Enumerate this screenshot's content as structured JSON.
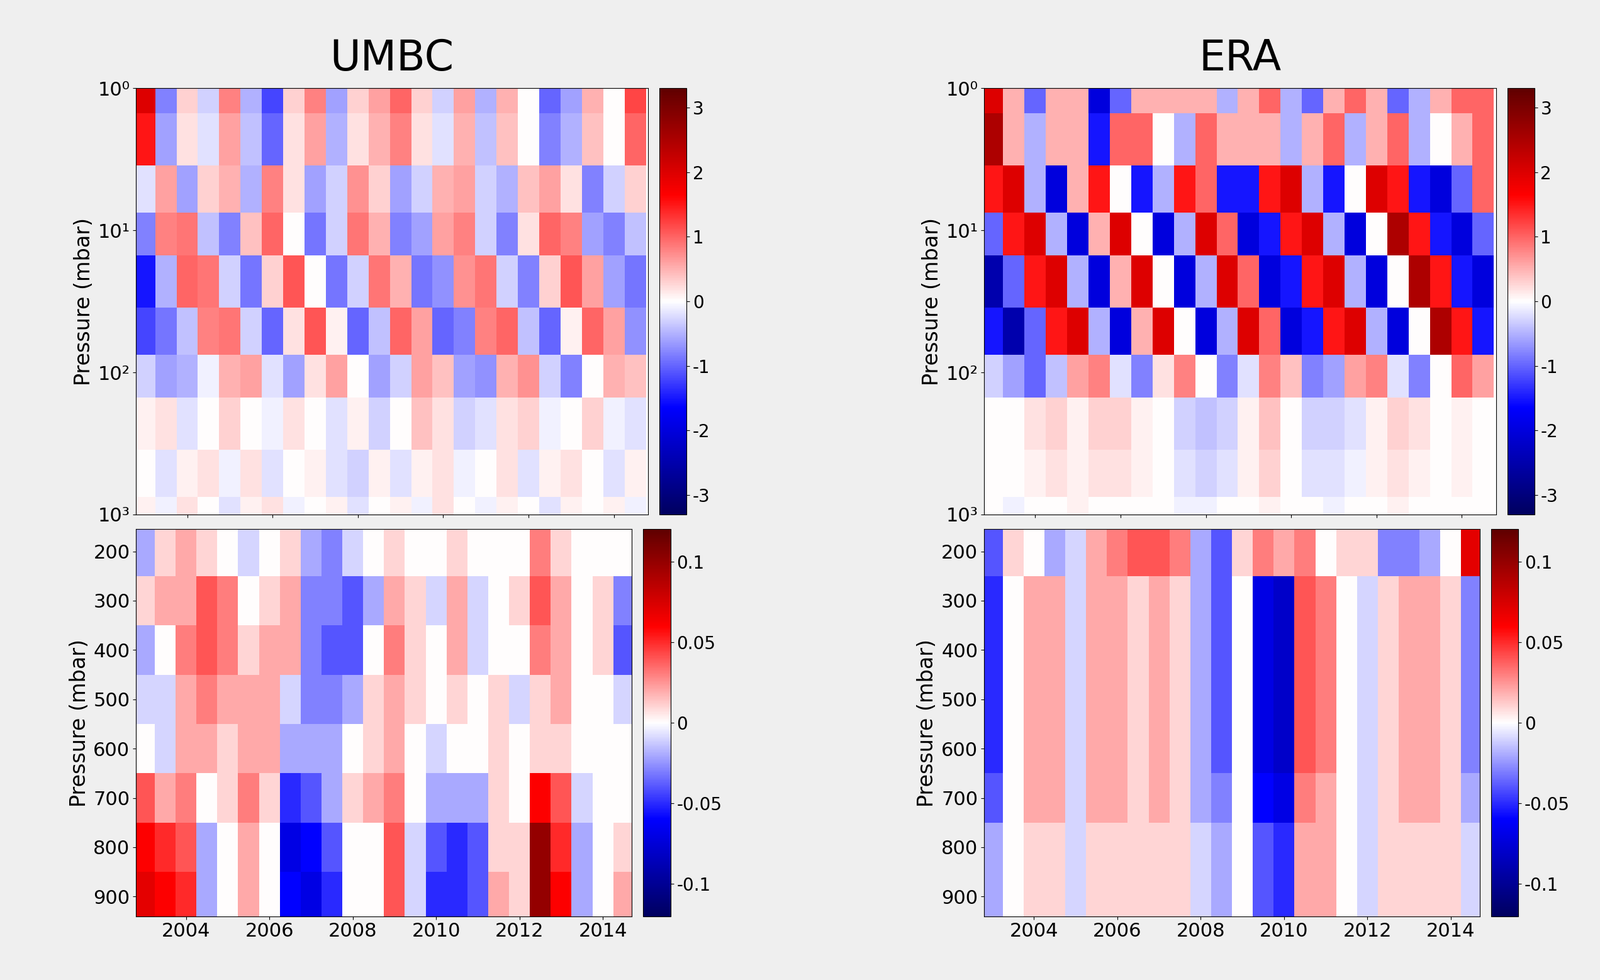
{
  "chart_data": [
    {
      "type": "heatmap",
      "title": "UMBC",
      "y_label": "Pressure (mbar)",
      "log": "y",
      "tick_labels": "y",
      "x": [
        2003.0,
        2003.5,
        2004.0,
        2004.5,
        2005.0,
        2005.5,
        2006.0,
        2006.5,
        2007.0,
        2007.5,
        2008.0,
        2008.5,
        2009.0,
        2009.5,
        2010.0,
        2010.5,
        2011.0,
        2011.5,
        2012.0,
        2012.5,
        2013.0,
        2013.5,
        2014.0,
        2014.5
      ],
      "y": [
        1,
        2,
        5,
        10,
        20,
        50,
        100,
        200,
        500,
        1000
      ],
      "z": [
        [
          2.0,
          -0.8,
          0.3,
          -0.3,
          0.8,
          -0.5,
          -1.2,
          0.3,
          0.8,
          -0.6,
          0.3,
          0.6,
          1.0,
          0.3,
          -0.3,
          0.6,
          -0.5,
          0.5,
          0.0,
          -1.0,
          -0.6,
          0.5,
          0.0,
          1.2
        ],
        [
          1.5,
          -0.6,
          0.2,
          -0.2,
          0.6,
          -0.4,
          -1.0,
          0.2,
          0.6,
          -0.5,
          0.2,
          0.5,
          0.8,
          0.2,
          -0.2,
          0.5,
          -0.4,
          0.4,
          0.0,
          -0.8,
          -0.5,
          0.4,
          0.0,
          1.0
        ],
        [
          -0.2,
          0.6,
          -0.6,
          0.3,
          0.5,
          -0.5,
          0.8,
          0.2,
          -0.6,
          -0.3,
          0.7,
          0.3,
          -0.6,
          -0.3,
          0.5,
          0.6,
          -0.3,
          -0.5,
          0.4,
          0.6,
          0.2,
          -0.8,
          -0.3,
          0.3
        ],
        [
          -0.8,
          0.8,
          0.9,
          -0.4,
          -0.8,
          0.4,
          1.0,
          0.0,
          -0.9,
          -0.3,
          0.9,
          0.5,
          -0.8,
          -0.6,
          0.6,
          0.8,
          -0.3,
          -0.8,
          0.2,
          1.0,
          0.8,
          -0.6,
          -0.8,
          -0.4
        ],
        [
          -1.5,
          -0.5,
          1.0,
          0.9,
          -0.3,
          -0.9,
          0.3,
          1.1,
          0.0,
          -0.9,
          -0.3,
          0.9,
          0.5,
          -0.9,
          -0.7,
          0.7,
          0.9,
          -0.3,
          -0.8,
          0.3,
          1.1,
          0.6,
          -0.6,
          -0.9
        ],
        [
          -1.2,
          -0.9,
          -0.4,
          0.8,
          0.9,
          -0.3,
          -1.0,
          0.2,
          1.1,
          0.1,
          -1.0,
          -0.4,
          1.0,
          0.6,
          -1.0,
          -0.8,
          0.8,
          1.0,
          -0.4,
          -1.0,
          0.1,
          1.0,
          0.6,
          -0.7
        ],
        [
          -0.3,
          -0.6,
          -0.5,
          -0.1,
          0.5,
          0.6,
          -0.2,
          -0.6,
          0.2,
          0.6,
          0.0,
          -0.6,
          -0.3,
          0.6,
          0.4,
          -0.6,
          -0.7,
          0.5,
          0.7,
          -0.3,
          -0.8,
          0.0,
          0.5,
          0.4
        ],
        [
          0.1,
          0.2,
          -0.2,
          0.0,
          0.3,
          0.0,
          -0.1,
          0.2,
          0.0,
          -0.2,
          0.1,
          -0.3,
          0.0,
          0.4,
          0.2,
          -0.3,
          -0.2,
          0.2,
          0.3,
          -0.1,
          0.0,
          0.3,
          -0.1,
          -0.2
        ],
        [
          0.0,
          -0.2,
          0.1,
          0.2,
          -0.1,
          0.2,
          -0.2,
          0.0,
          0.1,
          -0.2,
          -0.3,
          0.1,
          -0.2,
          0.1,
          0.2,
          -0.1,
          0.0,
          0.2,
          -0.2,
          0.1,
          0.2,
          0.0,
          -0.2,
          0.1
        ],
        [
          0.1,
          -0.1,
          0.2,
          0.0,
          -0.2,
          0.1,
          0.2,
          -0.1,
          0.0,
          0.1,
          -0.2,
          0.0,
          0.1,
          -0.1,
          0.2,
          0.0,
          -0.1,
          0.1,
          0.0,
          -0.2,
          0.1,
          0.0,
          0.1,
          -0.1
        ]
      ],
      "xlim": [
        2002.8,
        2014.8
      ],
      "xticks": [
        2004,
        2006,
        2008,
        2010,
        2012,
        2014
      ],
      "ylim": [
        1000,
        1
      ],
      "yticks": [
        {
          "value": 1,
          "label": "10⁰"
        },
        {
          "value": 10,
          "label": "10¹"
        },
        {
          "value": 100,
          "label": "10²"
        },
        {
          "value": 1000,
          "label": "10³"
        }
      ],
      "colorbar_range": [
        -3.3,
        3.3
      ],
      "colorbar_ticks": [
        -3,
        -2,
        -1,
        0,
        1,
        2,
        3
      ]
    },
    {
      "type": "heatmap",
      "title": "ERA",
      "y_label": "Pressure (mbar)",
      "log": "y",
      "tick_labels": "y",
      "x": [
        2003.0,
        2003.5,
        2004.0,
        2004.5,
        2005.0,
        2005.5,
        2006.0,
        2006.5,
        2007.0,
        2007.5,
        2008.0,
        2008.5,
        2009.0,
        2009.5,
        2010.0,
        2010.5,
        2011.0,
        2011.5,
        2012.0,
        2012.5,
        2013.0,
        2013.5,
        2014.0,
        2014.5
      ],
      "y": [
        1,
        2,
        5,
        10,
        20,
        50,
        100,
        200,
        500,
        1000
      ],
      "z": [
        [
          2.0,
          0.5,
          -1.0,
          0.5,
          0.5,
          -2.0,
          -1.0,
          0.5,
          0.5,
          0.5,
          0.5,
          -0.5,
          0.5,
          1.0,
          -0.5,
          -1.0,
          0.5,
          1.0,
          0.5,
          -1.0,
          -0.5,
          0.5,
          1.0,
          1.0
        ],
        [
          2.5,
          0.5,
          -0.5,
          0.5,
          0.5,
          -1.5,
          1.0,
          1.0,
          0.0,
          -0.5,
          1.0,
          0.5,
          0.5,
          0.5,
          -0.5,
          0.5,
          1.0,
          -0.5,
          0.5,
          1.0,
          -0.5,
          0.0,
          0.5,
          1.0
        ],
        [
          1.5,
          2.0,
          -0.5,
          -2.0,
          0.5,
          1.5,
          0.0,
          -1.5,
          -0.5,
          1.5,
          1.0,
          -1.5,
          -1.5,
          1.5,
          2.0,
          -0.5,
          -1.5,
          0.0,
          2.0,
          1.5,
          -1.5,
          -2.0,
          -1.0,
          1.0
        ],
        [
          -1.0,
          1.5,
          2.0,
          -0.5,
          -2.0,
          0.5,
          2.0,
          0.0,
          -2.0,
          -0.5,
          2.0,
          1.0,
          -2.0,
          -1.5,
          1.5,
          2.0,
          -0.5,
          -2.0,
          0.0,
          2.5,
          1.5,
          -1.5,
          -2.0,
          -1.0
        ],
        [
          -2.5,
          -1.0,
          1.5,
          2.0,
          -0.5,
          -2.0,
          0.5,
          2.0,
          0.0,
          -2.0,
          -0.5,
          2.0,
          1.0,
          -2.0,
          -1.5,
          1.5,
          2.0,
          -0.5,
          -2.0,
          0.0,
          2.5,
          1.5,
          -1.5,
          -2.0
        ],
        [
          -1.5,
          -2.5,
          -1.0,
          1.5,
          2.0,
          -0.5,
          -2.0,
          0.5,
          2.0,
          0.0,
          -2.0,
          -0.5,
          2.0,
          1.0,
          -2.0,
          -1.5,
          1.5,
          2.0,
          -0.5,
          -2.0,
          0.0,
          2.5,
          1.5,
          -1.5
        ],
        [
          -0.3,
          -0.6,
          -1.0,
          -0.4,
          0.6,
          0.8,
          -0.2,
          -0.8,
          0.2,
          0.8,
          0.0,
          -0.8,
          -0.2,
          0.8,
          0.4,
          -0.8,
          -0.6,
          0.6,
          0.8,
          -0.2,
          -0.8,
          0.0,
          1.0,
          0.6
        ],
        [
          0.0,
          0.0,
          0.2,
          0.3,
          0.1,
          0.3,
          0.3,
          0.1,
          0.0,
          -0.3,
          -0.4,
          -0.3,
          0.1,
          0.4,
          0.0,
          -0.3,
          -0.3,
          -0.2,
          0.1,
          0.3,
          0.2,
          0.0,
          0.1,
          0.0
        ],
        [
          0.0,
          0.0,
          0.1,
          0.2,
          0.1,
          0.2,
          0.2,
          0.1,
          0.0,
          -0.2,
          -0.3,
          -0.2,
          0.1,
          0.3,
          0.0,
          -0.2,
          -0.2,
          -0.1,
          0.1,
          0.2,
          0.1,
          0.0,
          0.1,
          0.0
        ],
        [
          0.0,
          -0.1,
          0.0,
          0.0,
          0.1,
          0.0,
          0.0,
          0.0,
          0.0,
          -0.1,
          -0.1,
          0.0,
          0.0,
          0.1,
          0.0,
          0.0,
          -0.1,
          0.0,
          0.0,
          0.1,
          0.0,
          0.0,
          0.0,
          0.0
        ]
      ],
      "xlim": [
        2002.8,
        2014.8
      ],
      "xticks": [
        2004,
        2006,
        2008,
        2010,
        2012,
        2014
      ],
      "ylim": [
        1000,
        1
      ],
      "yticks": [
        {
          "value": 1,
          "label": "10⁰"
        },
        {
          "value": 10,
          "label": "10¹"
        },
        {
          "value": 100,
          "label": "10²"
        },
        {
          "value": 1000,
          "label": "10³"
        }
      ],
      "colorbar_range": [
        -3.3,
        3.3
      ],
      "colorbar_ticks": [
        -3,
        -2,
        -1,
        0,
        1,
        2,
        3
      ]
    },
    {
      "type": "heatmap",
      "y_label": "Pressure (mbar)",
      "x": [
        2003.0,
        2003.5,
        2004.0,
        2004.5,
        2005.0,
        2005.5,
        2006.0,
        2006.5,
        2007.0,
        2007.5,
        2008.0,
        2008.5,
        2009.0,
        2009.5,
        2010.0,
        2010.5,
        2011.0,
        2011.5,
        2012.0,
        2012.5,
        2013.0,
        2013.5,
        2014.0,
        2014.5
      ],
      "y": [
        200,
        300,
        400,
        500,
        600,
        700,
        800,
        900
      ],
      "z": [
        [
          -0.02,
          0.01,
          0.02,
          0.01,
          0.0,
          -0.01,
          0.0,
          0.01,
          -0.02,
          -0.03,
          -0.01,
          0.0,
          0.01,
          0.0,
          0.0,
          0.01,
          0.0,
          0.0,
          0.0,
          0.03,
          0.01,
          0.0,
          0.0,
          0.0
        ],
        [
          0.01,
          0.02,
          0.02,
          0.04,
          0.03,
          0.0,
          0.01,
          0.02,
          -0.03,
          -0.03,
          -0.04,
          -0.02,
          0.02,
          0.01,
          -0.01,
          0.02,
          -0.01,
          0.0,
          0.01,
          0.04,
          0.02,
          0.0,
          0.01,
          -0.03
        ],
        [
          -0.02,
          0.0,
          0.03,
          0.04,
          0.03,
          0.01,
          0.02,
          0.02,
          -0.03,
          -0.04,
          -0.04,
          0.0,
          0.03,
          0.01,
          0.0,
          0.02,
          -0.01,
          0.0,
          0.0,
          0.03,
          0.02,
          0.0,
          0.01,
          -0.04
        ],
        [
          -0.01,
          -0.01,
          0.02,
          0.03,
          0.02,
          0.02,
          0.02,
          -0.01,
          -0.03,
          -0.03,
          -0.02,
          0.01,
          0.02,
          0.01,
          0.0,
          0.01,
          0.0,
          0.01,
          -0.01,
          0.01,
          0.02,
          0.0,
          0.0,
          -0.01
        ],
        [
          0.0,
          -0.01,
          0.02,
          0.02,
          0.01,
          0.02,
          0.02,
          -0.02,
          -0.02,
          -0.02,
          0.0,
          0.01,
          0.02,
          0.0,
          -0.01,
          0.0,
          0.0,
          0.01,
          0.0,
          0.01,
          0.01,
          0.0,
          0.0,
          0.0
        ],
        [
          0.04,
          0.02,
          0.03,
          0.0,
          0.01,
          0.03,
          0.01,
          -0.05,
          -0.04,
          -0.02,
          0.01,
          0.02,
          0.03,
          0.0,
          -0.02,
          -0.02,
          -0.02,
          0.01,
          0.0,
          0.06,
          0.04,
          -0.01,
          0.0,
          0.0
        ],
        [
          0.06,
          0.05,
          0.04,
          -0.02,
          0.0,
          0.02,
          0.0,
          -0.07,
          -0.06,
          -0.04,
          0.0,
          0.0,
          0.04,
          -0.01,
          -0.04,
          -0.05,
          -0.04,
          0.01,
          0.01,
          0.1,
          0.05,
          -0.02,
          0.0,
          0.01
        ],
        [
          0.07,
          0.06,
          0.05,
          -0.02,
          0.0,
          0.02,
          0.0,
          -0.06,
          -0.07,
          -0.05,
          0.0,
          0.0,
          0.04,
          -0.01,
          -0.05,
          -0.05,
          -0.04,
          0.02,
          0.01,
          0.1,
          0.06,
          -0.02,
          0.0,
          0.02
        ]
      ],
      "xlim": [
        2002.8,
        2014.7
      ],
      "xticks": [
        2004,
        2006,
        2008,
        2010,
        2012,
        2014
      ],
      "ylim": [
        940,
        155
      ],
      "yticks": [
        200,
        300,
        400,
        500,
        600,
        700,
        800,
        900
      ],
      "colorbar_range": [
        -0.12,
        0.12
      ],
      "colorbar_ticks": [
        -0.1,
        -0.05,
        0,
        0.05,
        0.1
      ]
    },
    {
      "type": "heatmap",
      "y_label": "Pressure (mbar)",
      "x": [
        2003.0,
        2003.5,
        2004.0,
        2004.5,
        2005.0,
        2005.5,
        2006.0,
        2006.5,
        2007.0,
        2007.5,
        2008.0,
        2008.5,
        2009.0,
        2009.5,
        2010.0,
        2010.5,
        2011.0,
        2011.5,
        2012.0,
        2012.5,
        2013.0,
        2013.5,
        2014.0,
        2014.5
      ],
      "y": [
        200,
        300,
        400,
        500,
        600,
        700,
        800,
        900
      ],
      "z": [
        [
          -0.04,
          0.01,
          0.0,
          -0.02,
          -0.01,
          0.02,
          0.03,
          0.04,
          0.04,
          0.03,
          -0.02,
          -0.04,
          0.01,
          0.03,
          0.02,
          0.03,
          0.0,
          0.01,
          0.01,
          -0.03,
          -0.03,
          -0.02,
          0.0,
          0.07
        ],
        [
          -0.05,
          0.0,
          0.02,
          0.02,
          -0.01,
          0.02,
          0.02,
          0.01,
          0.02,
          0.01,
          -0.02,
          -0.04,
          0.0,
          -0.07,
          -0.08,
          0.04,
          0.03,
          0.0,
          -0.01,
          0.01,
          0.02,
          0.02,
          0.01,
          -0.03
        ],
        [
          -0.05,
          0.0,
          0.02,
          0.02,
          -0.01,
          0.02,
          0.02,
          0.01,
          0.02,
          0.01,
          -0.02,
          -0.04,
          0.0,
          -0.07,
          -0.08,
          0.04,
          0.03,
          0.0,
          -0.01,
          0.01,
          0.02,
          0.02,
          0.01,
          -0.03
        ],
        [
          -0.05,
          0.0,
          0.02,
          0.02,
          -0.01,
          0.02,
          0.02,
          0.01,
          0.02,
          0.01,
          -0.02,
          -0.04,
          0.0,
          -0.07,
          -0.08,
          0.04,
          0.03,
          0.0,
          -0.01,
          0.01,
          0.02,
          0.02,
          0.01,
          -0.03
        ],
        [
          -0.05,
          0.0,
          0.02,
          0.02,
          -0.01,
          0.02,
          0.02,
          0.01,
          0.02,
          0.01,
          -0.02,
          -0.04,
          0.0,
          -0.07,
          -0.08,
          0.04,
          0.03,
          0.0,
          -0.01,
          0.01,
          0.02,
          0.02,
          0.01,
          -0.03
        ],
        [
          -0.04,
          0.0,
          0.02,
          0.02,
          -0.01,
          0.02,
          0.02,
          0.01,
          0.02,
          0.01,
          -0.02,
          -0.03,
          0.0,
          -0.06,
          -0.07,
          0.03,
          0.02,
          0.0,
          -0.01,
          0.01,
          0.02,
          0.02,
          0.01,
          -0.02
        ],
        [
          -0.02,
          0.0,
          0.01,
          0.01,
          -0.01,
          0.01,
          0.01,
          0.01,
          0.01,
          0.01,
          -0.01,
          -0.02,
          0.0,
          -0.04,
          -0.05,
          0.02,
          0.02,
          0.0,
          -0.01,
          0.01,
          0.01,
          0.01,
          0.01,
          -0.01
        ],
        [
          -0.02,
          0.0,
          0.01,
          0.01,
          -0.01,
          0.01,
          0.01,
          0.01,
          0.01,
          0.01,
          -0.01,
          -0.02,
          0.0,
          -0.04,
          -0.05,
          0.02,
          0.02,
          0.0,
          -0.01,
          0.01,
          0.01,
          0.01,
          0.01,
          -0.01
        ]
      ],
      "xlim": [
        2002.8,
        2014.7
      ],
      "xticks": [
        2004,
        2006,
        2008,
        2010,
        2012,
        2014
      ],
      "ylim": [
        940,
        155
      ],
      "yticks": [
        200,
        300,
        400,
        500,
        600,
        700,
        800,
        900
      ],
      "colorbar_range": [
        -0.12,
        0.12
      ],
      "colorbar_ticks": [
        -0.1,
        -0.05,
        0,
        0.05,
        0.1
      ]
    }
  ]
}
